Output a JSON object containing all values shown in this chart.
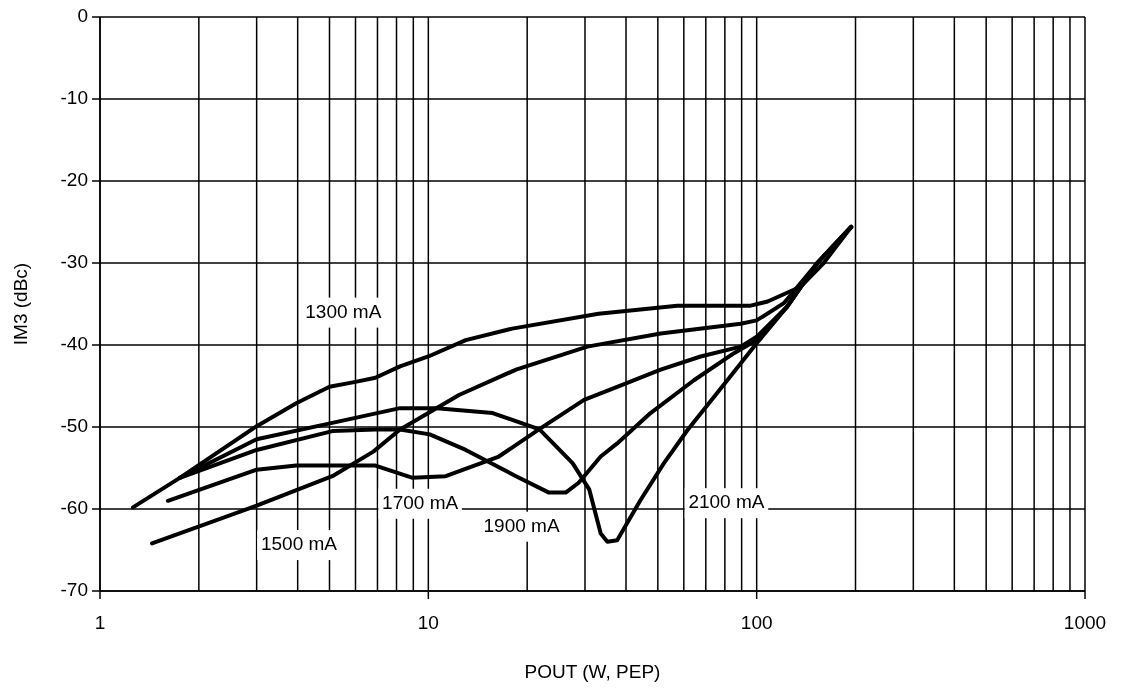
{
  "chart_data": {
    "type": "line",
    "xlabel": "POUT (W, PEP)",
    "ylabel": "IM3 (dBc)",
    "log": "x",
    "grid": true,
    "marker": "none",
    "line_style": "solid",
    "xlim": [
      1,
      1000
    ],
    "xticks": [
      1,
      10,
      100,
      1000
    ],
    "ylim": [
      -70,
      0
    ],
    "yticks": [
      -70,
      -60,
      -50,
      -40,
      -30,
      -20,
      -10,
      0
    ],
    "series": [
      {
        "color": "#000000",
        "x": [
          1.26,
          1.75,
          3.0,
          3.96,
          5.0,
          6.0,
          6.9,
          8.2,
          10,
          13,
          18,
          33,
          57.3,
          95.9,
          108,
          136,
          160,
          194
        ],
        "values": [
          -59.8,
          -56.2,
          -49.9,
          -47.1,
          -45.1,
          -44.5,
          -44.0,
          -42.6,
          -41.4,
          -39.4,
          -38.0,
          -36.2,
          -35.2,
          -35.2,
          -34.7,
          -32.9,
          -30.0,
          -25.6
        ]
      },
      {
        "color": "#000000",
        "x": [
          1.44,
          3.0,
          5.1,
          6.8,
          8.2,
          10,
          12.4,
          18.5,
          30.5,
          51,
          89.4,
          100,
          121,
          153,
          194
        ],
        "values": [
          -64.2,
          -59.6,
          -56.0,
          -53.0,
          -50.3,
          -48.3,
          -46.1,
          -43.0,
          -40.2,
          -38.6,
          -37.4,
          -37.0,
          -34.9,
          -30.0,
          -25.6
        ]
      },
      {
        "color": "#000000",
        "x": [
          1.75,
          3.0,
          5.1,
          8.2,
          10.6,
          15.7,
          21.8,
          27.5,
          30.9,
          33.5,
          35.1,
          37.6,
          44.3,
          52.2,
          61.5,
          81.4,
          100,
          124,
          153,
          194
        ],
        "values": [
          -56.2,
          -51.5,
          -49.5,
          -47.7,
          -47.7,
          -48.3,
          -50.3,
          -54.4,
          -57.6,
          -63.0,
          -64.0,
          -63.8,
          -58.9,
          -54.4,
          -50.4,
          -44.3,
          -39.8,
          -35.3,
          -30.0,
          -25.6
        ]
      },
      {
        "color": "#000000",
        "x": [
          1.75,
          3.0,
          5.1,
          6.9,
          8.2,
          10.1,
          13,
          18.5,
          23.3,
          26.2,
          28.7,
          33.5,
          37.6,
          47.5,
          64.4,
          85.3,
          100,
          124,
          153,
          194
        ],
        "values": [
          -56.2,
          -52.8,
          -50.5,
          -50.3,
          -50.3,
          -50.9,
          -52.8,
          -56.0,
          -58.0,
          -58.0,
          -56.8,
          -53.6,
          -52.0,
          -48.3,
          -44.3,
          -41.0,
          -39.4,
          -35.3,
          -30.0,
          -25.6
        ]
      },
      {
        "color": "#000000",
        "x": [
          1.61,
          3.0,
          3.96,
          6.9,
          8.96,
          11.3,
          16.4,
          21.9,
          29.8,
          37.6,
          51,
          67.5,
          89.4,
          100,
          124,
          153,
          194
        ],
        "values": [
          -59.0,
          -55.2,
          -54.7,
          -54.7,
          -56.2,
          -56.0,
          -53.6,
          -50.2,
          -46.7,
          -45.1,
          -43.0,
          -41.4,
          -40.2,
          -39.0,
          -35.3,
          -30.0,
          -25.6
        ]
      }
    ],
    "annotations": [
      "1300 mA",
      "1500 mA",
      "1700 mA",
      "1900 mA",
      "2100 mA"
    ]
  }
}
